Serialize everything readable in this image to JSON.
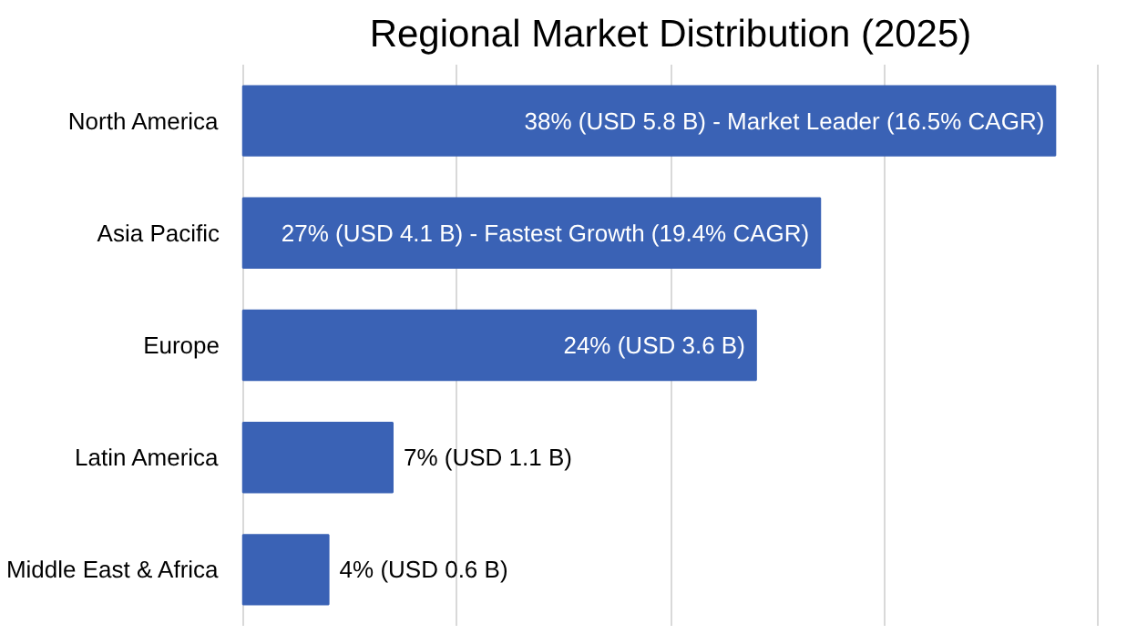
{
  "chart_data": {
    "type": "bar",
    "orientation": "horizontal",
    "title": "Regional Market Distribution (2025)",
    "categories": [
      "North America",
      "Asia Pacific",
      "Europe",
      "Latin America",
      "Middle East & Africa"
    ],
    "values": [
      38,
      27,
      24,
      7,
      4
    ],
    "value_labels": [
      "38% (USD 5.8 B) - Market Leader (16.5% CAGR)",
      "27% (USD 4.1 B) - Fastest Growth (19.4% CAGR)",
      "24% (USD 3.6 B)",
      "7% (USD 1.1 B)",
      "4% (USD 0.6 B)"
    ],
    "color": "#3a62b5",
    "xlim": [
      0,
      40
    ],
    "xticks": [
      {
        "value": 0,
        "label": null
      },
      {
        "value": 10,
        "label": null
      },
      {
        "value": 20,
        "label": null
      },
      {
        "value": 30,
        "label": null
      },
      {
        "value": 40,
        "label": null
      }
    ],
    "grid": "x",
    "tick_labels": "y"
  }
}
